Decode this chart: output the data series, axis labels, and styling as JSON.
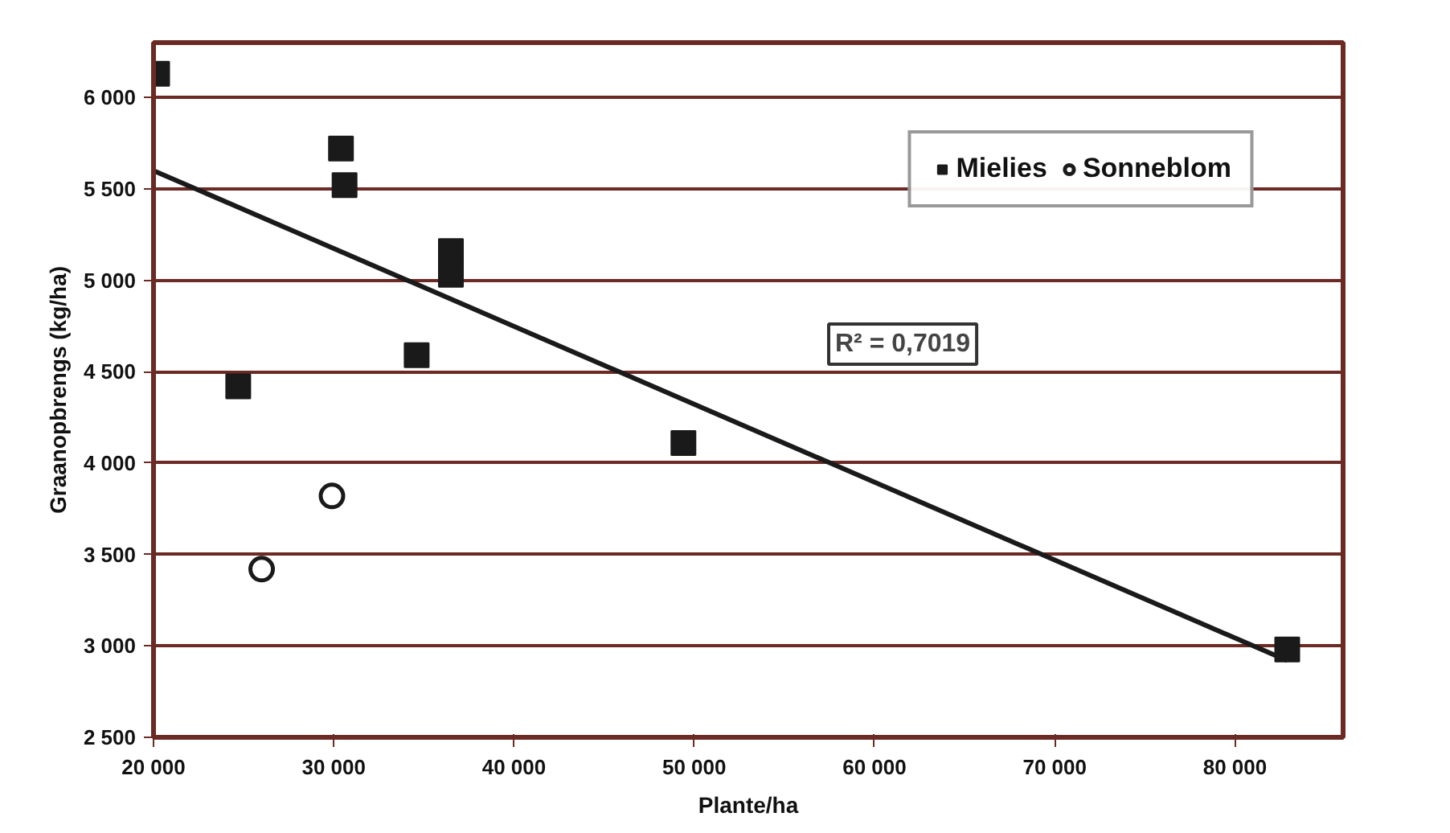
{
  "chart_data": {
    "type": "scatter",
    "xlabel": "Plante/ha",
    "ylabel": "Graanopbrengs (kg/ha)",
    "xlim": [
      20000,
      86000
    ],
    "xticks": [
      {
        "value": 20000,
        "label": "20 000"
      },
      {
        "value": 30000,
        "label": "30 000"
      },
      {
        "value": 40000,
        "label": "40 000"
      },
      {
        "value": 50000,
        "label": "50 000"
      },
      {
        "value": 60000,
        "label": "60 000"
      },
      {
        "value": 70000,
        "label": "70 000"
      },
      {
        "value": 80000,
        "label": "80 000"
      }
    ],
    "ylim": [
      2500,
      6300
    ],
    "yticks": [
      {
        "value": 2500,
        "label": "2 500"
      },
      {
        "value": 3000,
        "label": "3 000"
      },
      {
        "value": 3500,
        "label": "3 500"
      },
      {
        "value": 4000,
        "label": "4 000"
      },
      {
        "value": 4500,
        "label": "4 500"
      },
      {
        "value": 5000,
        "label": "5 000"
      },
      {
        "value": 5500,
        "label": "5 500"
      },
      {
        "value": 6000,
        "label": "6 000"
      }
    ],
    "grid": "y",
    "legend": "top right",
    "series": [
      {
        "name": "Mielies",
        "marker": "square",
        "color": "#1a1a1a",
        "x": [
          20200,
          30400,
          30600,
          36500,
          36500,
          34600,
          24700,
          49400,
          82900
        ],
        "values": [
          6130,
          5720,
          5520,
          5160,
          5030,
          4590,
          4420,
          4110,
          2980
        ]
      },
      {
        "name": "Sonneblom",
        "marker": "circle",
        "color": "#1a1a1a",
        "x": [
          29900,
          26000
        ],
        "values": [
          3820,
          3420
        ]
      },
      {
        "type": "line",
        "color": "#1a1a1a",
        "x": [
          20000,
          82900
        ],
        "values": [
          5600,
          2920
        ]
      }
    ],
    "annotations": [
      "R² = 0,7019"
    ]
  }
}
